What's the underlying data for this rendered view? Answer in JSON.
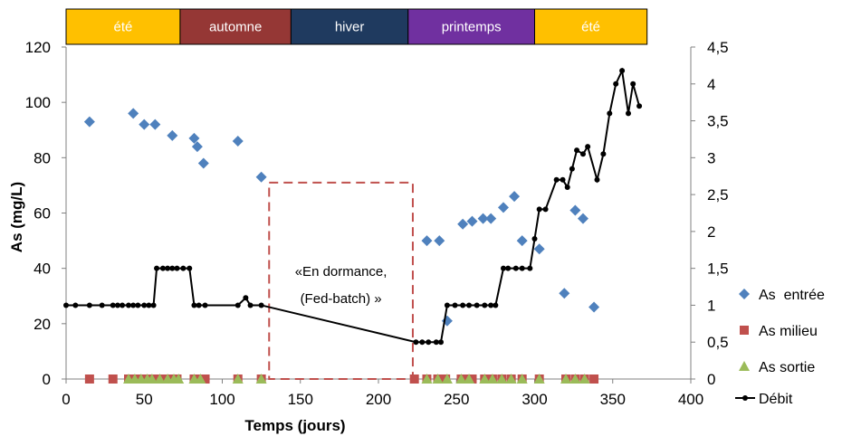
{
  "chart_data": {
    "type": "scatter",
    "xlabel": "Temps (jours)",
    "ylabel": "As (mg/L)",
    "x_range": [
      0,
      400
    ],
    "x_ticks": [
      0,
      50,
      100,
      150,
      200,
      250,
      300,
      350,
      400
    ],
    "y_left_range": [
      0,
      120
    ],
    "y_left_ticks": [
      0,
      20,
      40,
      60,
      80,
      100,
      120
    ],
    "y_right_range": [
      0,
      4.5
    ],
    "y_right_ticks": [
      "0",
      "0,5",
      "1",
      "1,5",
      "2",
      "2,5",
      "3",
      "3,5",
      "4",
      "4,5"
    ],
    "grid": false,
    "legend_position": "right",
    "seasons": [
      {
        "label": "été",
        "x_start": 0,
        "x_end": 73,
        "color": "#ffc000"
      },
      {
        "label": "automne",
        "x_start": 73,
        "x_end": 144,
        "color": "#953735"
      },
      {
        "label": "hiver",
        "x_start": 144,
        "x_end": 219,
        "color": "#1f3a5f"
      },
      {
        "label": "printemps",
        "x_start": 219,
        "x_end": 300,
        "color": "#7030a0"
      },
      {
        "label": "été",
        "x_start": 300,
        "x_end": 372,
        "color": "#ffc000"
      }
    ],
    "annotation": {
      "lines": [
        "«En dormance,",
        "(Fed-batch) »"
      ],
      "x_start": 130,
      "x_end": 222,
      "y_top_left_axis": 71,
      "y_bottom_left_axis": 0,
      "color": "#c0504d"
    },
    "series": [
      {
        "name": "As  entrée",
        "axis": "left",
        "marker": "diamond",
        "color": "#4f81bd",
        "points": [
          [
            15,
            93
          ],
          [
            43,
            96
          ],
          [
            50,
            92
          ],
          [
            57,
            92
          ],
          [
            68,
            88
          ],
          [
            82,
            87
          ],
          [
            84,
            84
          ],
          [
            88,
            78
          ],
          [
            110,
            86
          ],
          [
            125,
            73
          ],
          [
            231,
            50
          ],
          [
            239,
            50
          ],
          [
            244,
            21
          ],
          [
            254,
            56
          ],
          [
            260,
            57
          ],
          [
            267,
            58
          ],
          [
            272,
            58
          ],
          [
            280,
            62
          ],
          [
            287,
            66
          ],
          [
            292,
            50
          ],
          [
            303,
            47
          ],
          [
            319,
            31
          ],
          [
            326,
            61
          ],
          [
            331,
            58
          ],
          [
            338,
            26
          ]
        ]
      },
      {
        "name": "As milieu",
        "axis": "left",
        "marker": "square",
        "color": "#c0504d",
        "points": [
          [
            15,
            0
          ],
          [
            30,
            0
          ],
          [
            40,
            0
          ],
          [
            43,
            0
          ],
          [
            47,
            0
          ],
          [
            51,
            0
          ],
          [
            55,
            0
          ],
          [
            58,
            0
          ],
          [
            63,
            0
          ],
          [
            67,
            0
          ],
          [
            71,
            0
          ],
          [
            82,
            0
          ],
          [
            85,
            0
          ],
          [
            89,
            0
          ],
          [
            110,
            0
          ],
          [
            125,
            0
          ],
          [
            223,
            0
          ],
          [
            231,
            0
          ],
          [
            238,
            0
          ],
          [
            243,
            0
          ],
          [
            253,
            0
          ],
          [
            257,
            0
          ],
          [
            260,
            0
          ],
          [
            268,
            0
          ],
          [
            273,
            0
          ],
          [
            279,
            0
          ],
          [
            285,
            0
          ],
          [
            292,
            0
          ],
          [
            303,
            0
          ],
          [
            320,
            0
          ],
          [
            326,
            0
          ],
          [
            332,
            0
          ],
          [
            338,
            0
          ]
        ]
      },
      {
        "name": "As sortie",
        "axis": "left",
        "marker": "triangle",
        "color": "#9bbb59",
        "points": [
          [
            40,
            0
          ],
          [
            44,
            0
          ],
          [
            48,
            0
          ],
          [
            52,
            0
          ],
          [
            55,
            0
          ],
          [
            60,
            0
          ],
          [
            65,
            0
          ],
          [
            69,
            0
          ],
          [
            72,
            0
          ],
          [
            82,
            0
          ],
          [
            86,
            0
          ],
          [
            110,
            0
          ],
          [
            125,
            0
          ],
          [
            231,
            0
          ],
          [
            238,
            0
          ],
          [
            244,
            0
          ],
          [
            253,
            0
          ],
          [
            258,
            0
          ],
          [
            268,
            0
          ],
          [
            273,
            0
          ],
          [
            279,
            0
          ],
          [
            285,
            0
          ],
          [
            292,
            0
          ],
          [
            303,
            0
          ],
          [
            320,
            0
          ],
          [
            326,
            0
          ],
          [
            332,
            0
          ]
        ]
      },
      {
        "name": "Débit",
        "axis": "right",
        "marker": "line-dot",
        "color": "#000000",
        "points": [
          [
            0,
            1
          ],
          [
            6,
            1
          ],
          [
            15,
            1
          ],
          [
            23,
            1
          ],
          [
            30,
            1
          ],
          [
            33,
            1
          ],
          [
            36,
            1
          ],
          [
            40,
            1
          ],
          [
            43,
            1
          ],
          [
            46,
            1
          ],
          [
            50,
            1
          ],
          [
            53,
            1
          ],
          [
            56,
            1
          ],
          [
            58,
            1.5
          ],
          [
            62,
            1.5
          ],
          [
            65,
            1.5
          ],
          [
            68,
            1.5
          ],
          [
            71,
            1.5
          ],
          [
            75,
            1.5
          ],
          [
            79,
            1.5
          ],
          [
            82,
            1
          ],
          [
            85,
            1
          ],
          [
            89,
            1
          ],
          [
            110,
            1
          ],
          [
            115,
            1.1
          ],
          [
            118,
            1
          ],
          [
            125,
            1
          ],
          [
            224,
            0.5
          ],
          [
            228,
            0.5
          ],
          [
            232,
            0.5
          ],
          [
            237,
            0.5
          ],
          [
            240,
            0.5
          ],
          [
            244,
            1
          ],
          [
            249,
            1
          ],
          [
            254,
            1
          ],
          [
            258,
            1
          ],
          [
            263,
            1
          ],
          [
            268,
            1
          ],
          [
            272,
            1
          ],
          [
            275,
            1
          ],
          [
            280,
            1.5
          ],
          [
            283,
            1.5
          ],
          [
            288,
            1.5
          ],
          [
            292,
            1.5
          ],
          [
            297,
            1.5
          ],
          [
            300,
            1.9
          ],
          [
            303,
            2.3
          ],
          [
            307,
            2.3
          ],
          [
            314,
            2.7
          ],
          [
            318,
            2.7
          ],
          [
            321,
            2.6
          ],
          [
            324,
            2.85
          ],
          [
            327,
            3.1
          ],
          [
            331,
            3.05
          ],
          [
            334,
            3.15
          ],
          [
            340,
            2.7
          ],
          [
            344,
            3.05
          ],
          [
            348,
            3.6
          ],
          [
            352,
            4
          ],
          [
            356,
            4.18
          ],
          [
            360,
            3.6
          ],
          [
            363,
            4
          ],
          [
            367,
            3.7
          ]
        ]
      }
    ]
  }
}
